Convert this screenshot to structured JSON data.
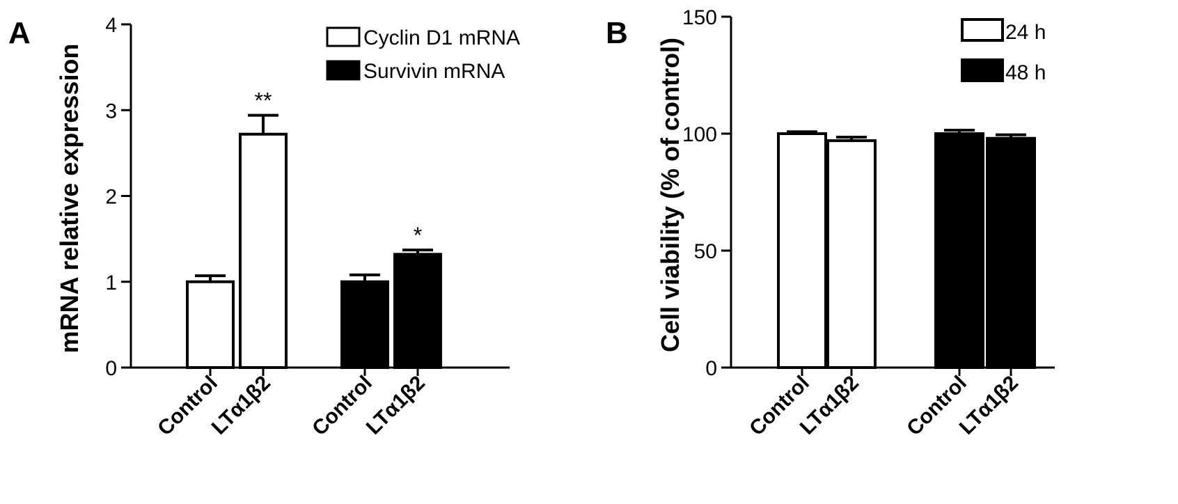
{
  "chart_data": [
    {
      "panel": "A",
      "type": "bar",
      "title": "",
      "xlabel": "",
      "ylabel": "mRNA relative expression",
      "ylim": [
        0,
        4
      ],
      "yticks": [
        0,
        1,
        2,
        3,
        4
      ],
      "legend_position": "top-right",
      "series": [
        {
          "name": "Cyclin D1 mRNA",
          "fill": "#ffffff",
          "categories": [
            "Control",
            "LTα1β2"
          ],
          "values": [
            1.0,
            2.72
          ],
          "errors": [
            0.07,
            0.22
          ],
          "annotations": [
            "",
            "**"
          ]
        },
        {
          "name": "Survivin mRNA",
          "fill": "#000000",
          "categories": [
            "Control",
            "LTα1β2"
          ],
          "values": [
            1.0,
            1.32
          ],
          "errors": [
            0.08,
            0.05
          ],
          "annotations": [
            "",
            "*"
          ]
        }
      ]
    },
    {
      "panel": "B",
      "type": "bar",
      "title": "",
      "xlabel": "",
      "ylabel": "Cell viability (% of control)",
      "ylim": [
        0,
        150
      ],
      "yticks": [
        0,
        50,
        100,
        150
      ],
      "legend_position": "top-right",
      "series": [
        {
          "name": "24 h",
          "fill": "#ffffff",
          "categories": [
            "Control",
            "LTα1β2"
          ],
          "values": [
            100,
            97
          ],
          "errors": [
            0.8,
            1.5
          ],
          "annotations": [
            "",
            ""
          ]
        },
        {
          "name": "48 h",
          "fill": "#000000",
          "categories": [
            "Control",
            "LTα1β2"
          ],
          "values": [
            100,
            98
          ],
          "errors": [
            1.5,
            1.5
          ],
          "annotations": [
            "",
            ""
          ]
        }
      ]
    }
  ]
}
